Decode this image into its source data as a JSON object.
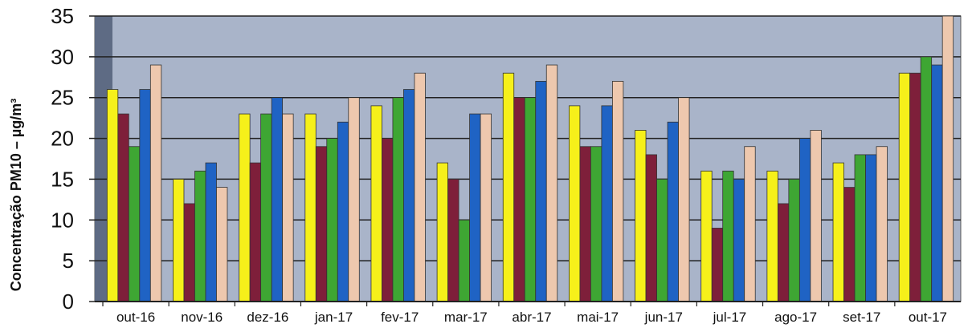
{
  "chart_data": {
    "type": "bar",
    "ylabel": "Concentração PM10 – µg/m³",
    "ylim": [
      0,
      35
    ],
    "yticks": [
      0,
      5,
      10,
      15,
      20,
      25,
      30,
      35
    ],
    "grid": true,
    "legend": "none",
    "background_color": "#a9b4c9",
    "categories": [
      "out-16",
      "nov-16",
      "dez-16",
      "jan-17",
      "fev-17",
      "mar-17",
      "abr-17",
      "mai-17",
      "jun-17",
      "jul-17",
      "ago-17",
      "set-17",
      "out-17"
    ],
    "series": [
      {
        "color": "#f6f01a",
        "values": [
          26,
          15,
          23,
          23,
          24,
          17,
          28,
          24,
          21,
          16,
          16,
          17,
          28
        ]
      },
      {
        "color": "#7e1f3a",
        "values": [
          23,
          12,
          17,
          19,
          20,
          15,
          25,
          19,
          18,
          9,
          12,
          14,
          28
        ]
      },
      {
        "color": "#3ea633",
        "values": [
          19,
          16,
          23,
          20,
          25,
          10,
          25,
          19,
          15,
          16,
          15,
          18,
          30
        ]
      },
      {
        "color": "#1f63c4",
        "values": [
          26,
          17,
          25,
          22,
          26,
          23,
          27,
          24,
          22,
          15,
          20,
          18,
          29
        ]
      },
      {
        "color": "#eec8ae",
        "values": [
          29,
          14,
          23,
          25,
          28,
          23,
          29,
          27,
          25,
          19,
          21,
          19,
          35
        ]
      }
    ]
  }
}
